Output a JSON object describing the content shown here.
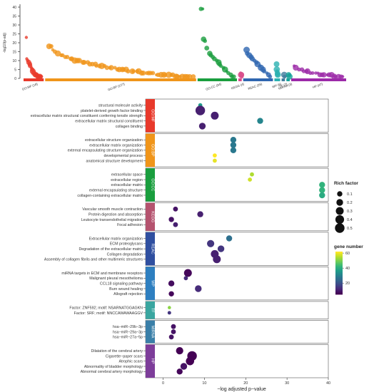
{
  "chart_data": [
    {
      "type": "scatter",
      "ylabel": "-log10(p-adj)",
      "ylim": [
        0,
        40
      ],
      "yticks": [
        0,
        5,
        10,
        15,
        20,
        25,
        30,
        35,
        40
      ],
      "groups": [
        {
          "label": "GO:MF (18)",
          "color": "#e8392b",
          "points": [
            23,
            11,
            10,
            9,
            8,
            7,
            6,
            5,
            4,
            3,
            2,
            2,
            2,
            1,
            1,
            1,
            1,
            1
          ]
        },
        {
          "label": "GO:BP (127)",
          "color": "#f0951a",
          "points": [
            18,
            18,
            16,
            15,
            14,
            13,
            13,
            12,
            12,
            11,
            11,
            10,
            10,
            10,
            9,
            9,
            9,
            8,
            8,
            8,
            7,
            7,
            7,
            7,
            6,
            6,
            6,
            6,
            5,
            5,
            5,
            5,
            5,
            4,
            4,
            4,
            4,
            4,
            3,
            3,
            3,
            3,
            3,
            3,
            2,
            2,
            2,
            2,
            2,
            2,
            2,
            2,
            1,
            1,
            1,
            1,
            1,
            1,
            1,
            1
          ]
        },
        {
          "label": "GO:CC (34)",
          "color": "#1a9e3e",
          "points": [
            39,
            39,
            22,
            21,
            17,
            14,
            13,
            12,
            11,
            10,
            9,
            8,
            7,
            6,
            5,
            4,
            3,
            2,
            1,
            1
          ]
        },
        {
          "label": "KEGG (4)",
          "color": "#d94d8b",
          "points": [
            3,
            2,
            2,
            1
          ]
        },
        {
          "label": "REAC (26)",
          "color": "#2f66b0",
          "points": [
            16,
            14,
            13,
            12,
            11,
            10,
            9,
            8,
            7,
            6,
            5,
            4,
            3,
            2,
            1
          ]
        },
        {
          "label": "WP (6)",
          "color": "#2ab0b0",
          "points": [
            8,
            5,
            4,
            3,
            2,
            2
          ]
        },
        {
          "label": "TF (2)",
          "color": "#3e7c9c",
          "points": [
            2,
            1
          ]
        },
        {
          "label": "MIRNA (3)",
          "color": "#16a39a",
          "points": [
            2,
            2,
            1
          ]
        },
        {
          "label": "HP (47)",
          "color": "#9c2aa8",
          "points": [
            7,
            6,
            5,
            5,
            4,
            4,
            4,
            3,
            3,
            3,
            3,
            2,
            2,
            2,
            2,
            2,
            2,
            1,
            1,
            1,
            1,
            1
          ]
        }
      ]
    },
    {
      "type": "scatter",
      "xlabel": "−log adjusted p−value",
      "xlim": [
        -2,
        40
      ],
      "xticks": [
        0,
        10,
        20,
        30,
        40
      ],
      "legend_size_title": "Rich factor",
      "legend_size_values": [
        0.1,
        0.2,
        0.3,
        0.4,
        0.5
      ],
      "legend_color_title": "gene number",
      "color_range": [
        5,
        62
      ],
      "colorbar_ticks": [
        20,
        40,
        60
      ],
      "panels": [
        {
          "label": "GO:MF",
          "color": "#e8392b",
          "terms": [
            {
              "name": "structural molecule activity",
              "x": 9,
              "rich": 0.05,
              "genes": 36
            },
            {
              "name": "platelet-derived growth factor binding",
              "x": 9,
              "rich": 0.5,
              "genes": 10
            },
            {
              "name": "extracellular matrix structural constituent conferring tensile strength",
              "x": 12.5,
              "rich": 0.3,
              "genes": 10
            },
            {
              "name": "extracellular matrix structural constituent",
              "x": 23.5,
              "rich": 0.15,
              "genes": 31
            },
            {
              "name": "collagen binding",
              "x": 9.5,
              "rich": 0.2,
              "genes": 10
            }
          ]
        },
        {
          "label": "GO:BP",
          "color": "#f0951a",
          "terms": [
            {
              "name": "extracellular structure organization",
              "x": 17,
              "rich": 0.15,
              "genes": 28
            },
            {
              "name": "extracellular matrix organization",
              "x": 17,
              "rich": 0.15,
              "genes": 28
            },
            {
              "name": "external encapsulating structure organization",
              "x": 17,
              "rich": 0.15,
              "genes": 28
            },
            {
              "name": "developmental process",
              "x": 12.5,
              "rich": 0.05,
              "genes": 62
            },
            {
              "name": "anatomical structure development",
              "x": 12.5,
              "rich": 0.05,
              "genes": 60
            }
          ]
        },
        {
          "label": "GO:CC",
          "color": "#1a9e3e",
          "terms": [
            {
              "name": "extracellular space",
              "x": 21.5,
              "rich": 0.05,
              "genes": 55
            },
            {
              "name": "extracellular region",
              "x": 21,
              "rich": 0.05,
              "genes": 58
            },
            {
              "name": "extracellular matrix",
              "x": 38.5,
              "rich": 0.15,
              "genes": 42
            },
            {
              "name": "external encapsulating structure",
              "x": 38.5,
              "rich": 0.15,
              "genes": 42
            },
            {
              "name": "collagen-containing extracellular matrix",
              "x": 38.5,
              "rich": 0.15,
              "genes": 40
            }
          ]
        },
        {
          "label": "KEGG",
          "color": "#b5536f",
          "terms": [
            {
              "name": "Vascular smooth muscle contraction",
              "x": 3,
              "rich": 0.08,
              "genes": 8
            },
            {
              "name": "Protein digestion and absorption",
              "x": 9,
              "rich": 0.15,
              "genes": 10
            },
            {
              "name": "Leukocyte transendothelial migration",
              "x": 2,
              "rich": 0.1,
              "genes": 8
            },
            {
              "name": "Focal adhesion",
              "x": 3,
              "rich": 0.08,
              "genes": 10
            }
          ]
        },
        {
          "label": "REAC",
          "color": "#2f4fa0",
          "terms": [
            {
              "name": "Extracellular matrix organization",
              "x": 16,
              "rich": 0.15,
              "genes": 26
            },
            {
              "name": "ECM proteoglycans",
              "x": 11.5,
              "rich": 0.25,
              "genes": 14
            },
            {
              "name": "Degradation of the extracellular matrix",
              "x": 14,
              "rich": 0.2,
              "genes": 14
            },
            {
              "name": "Collagen degradation",
              "x": 12.5,
              "rich": 0.3,
              "genes": 10
            },
            {
              "name": "Assembly of collagen fibrils and other multimeric structures",
              "x": 13,
              "rich": 0.3,
              "genes": 10
            }
          ]
        },
        {
          "label": "WP",
          "color": "#2e7fc0",
          "terms": [
            {
              "name": "miRNA targets in ECM and membrane receptors",
              "x": 6,
              "rich": 0.3,
              "genes": 6
            },
            {
              "name": "Malignant pleural mesothelioma",
              "x": 5.5,
              "rich": 0.05,
              "genes": 12
            },
            {
              "name": "CCL18 signaling pathway",
              "x": 2,
              "rich": 0.15,
              "genes": 7
            },
            {
              "name": "Burn wound healing",
              "x": 8.5,
              "rich": 0.2,
              "genes": 12
            },
            {
              "name": "Allograft rejection",
              "x": 2,
              "rich": 0.1,
              "genes": 6
            }
          ]
        },
        {
          "label": "TF",
          "color": "#3aa6a0",
          "terms": [
            {
              "name": "Factor: ZNF592; motif: NSARNATGGAGKN",
              "x": 1.5,
              "rich": 0.02,
              "genes": 52
            },
            {
              "name": "Factor: SRF; motif: NNCCAWAWAAGGV",
              "x": 1.5,
              "rich": 0.03,
              "genes": 14
            }
          ]
        },
        {
          "label": "MIRNA",
          "color": "#3a7fa8",
          "terms": [
            {
              "name": "hsa−miR−29b−3p",
              "x": 2.5,
              "rich": 0.08,
              "genes": 8
            },
            {
              "name": "hsa−miR−29a−3p",
              "x": 2.5,
              "rich": 0.08,
              "genes": 8
            },
            {
              "name": "hsa−miR−27a−5p",
              "x": 2,
              "rich": 0.08,
              "genes": 8
            }
          ]
        },
        {
          "label": "HP",
          "color": "#7d3d9a",
          "terms": [
            {
              "name": "Dilatation of the cerebral artery",
              "x": 4,
              "rich": 0.25,
              "genes": 4
            },
            {
              "name": "Cigarette−paper scars",
              "x": 7,
              "rich": 0.5,
              "genes": 5
            },
            {
              "name": "Atrophic scars",
              "x": 6.5,
              "rich": 0.35,
              "genes": 5
            },
            {
              "name": "Abnormality of bladder morphology",
              "x": 5,
              "rich": 0.2,
              "genes": 8
            },
            {
              "name": "Abnormal cerebral artery morphology",
              "x": 4,
              "rich": 0.15,
              "genes": 6
            }
          ]
        }
      ]
    }
  ]
}
